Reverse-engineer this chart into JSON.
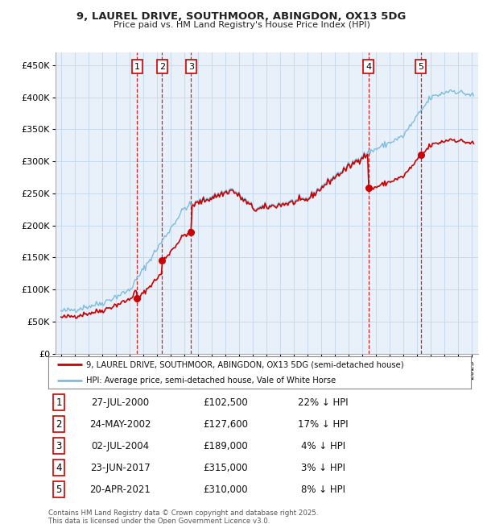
{
  "title_line1": "9, LAUREL DRIVE, SOUTHMOOR, ABINGDON, OX13 5DG",
  "title_line2": "Price paid vs. HM Land Registry's House Price Index (HPI)",
  "legend_label_red": "9, LAUREL DRIVE, SOUTHMOOR, ABINGDON, OX13 5DG (semi-detached house)",
  "legend_label_blue": "HPI: Average price, semi-detached house, Vale of White Horse",
  "footer_line1": "Contains HM Land Registry data © Crown copyright and database right 2025.",
  "footer_line2": "This data is licensed under the Open Government Licence v3.0.",
  "sales": [
    {
      "num": 1,
      "date": "27-JUL-2000",
      "price": 102500,
      "pct": "22%",
      "dir": "↓",
      "x": 2000.57
    },
    {
      "num": 2,
      "date": "24-MAY-2002",
      "price": 127600,
      "pct": "17%",
      "dir": "↓",
      "x": 2002.39
    },
    {
      "num": 3,
      "date": "02-JUL-2004",
      "price": 189000,
      "pct": "4%",
      "dir": "↓",
      "x": 2004.5
    },
    {
      "num": 4,
      "date": "23-JUN-2017",
      "price": 315000,
      "pct": "3%",
      "dir": "↓",
      "x": 2017.47
    },
    {
      "num": 5,
      "date": "20-APR-2021",
      "price": 310000,
      "pct": "8%",
      "dir": "↓",
      "x": 2021.3
    }
  ],
  "ylim_min": 0,
  "ylim_max": 470000,
  "xlim_start": 1994.6,
  "xlim_end": 2025.5,
  "hpi_color": "#7bbde0",
  "sale_color": "#cc0000",
  "grid_color": "#c8d8ee",
  "plot_bg": "#e8f0fa",
  "number_box_color": "#cc0000",
  "y_ticks": [
    0,
    50000,
    100000,
    150000,
    200000,
    250000,
    300000,
    350000,
    400000,
    450000
  ],
  "y_tick_labels": [
    "£0",
    "£50K",
    "£100K",
    "£150K",
    "£200K",
    "£250K",
    "£300K",
    "£350K",
    "£400K",
    "£450K"
  ]
}
